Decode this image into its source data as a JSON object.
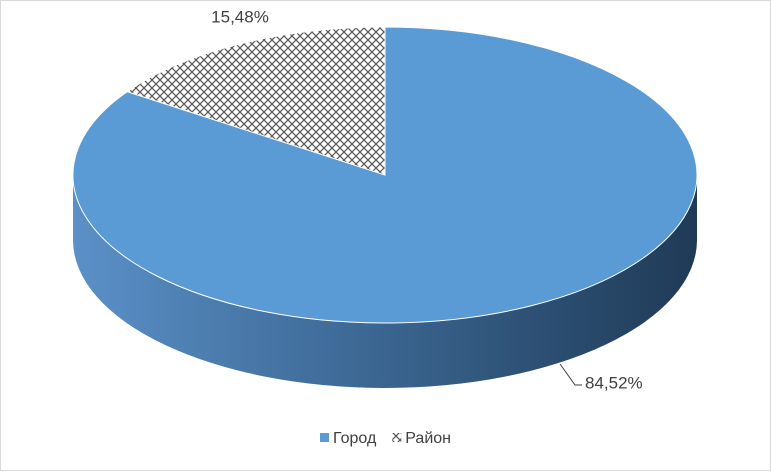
{
  "chart_data": {
    "type": "pie3d",
    "categories": [
      "Город",
      "Район"
    ],
    "values": [
      84.52,
      15.48
    ],
    "value_labels": [
      "84,52%",
      "15,48%"
    ],
    "colors": [
      "#5b9bd5",
      "pattern"
    ],
    "legend": "bottom"
  }
}
